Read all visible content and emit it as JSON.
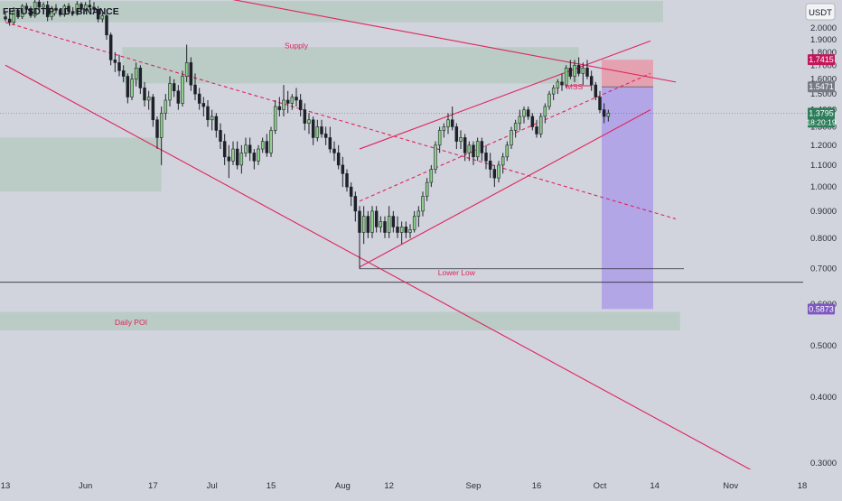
{
  "chart_data": {
    "type": "candlestick",
    "title": "FETUSDT.P, 1D, BINANCE",
    "currency": "USDT",
    "y_scale": "log",
    "ylim": [
      0.27,
      2.2
    ],
    "x_range": [
      "2024-05-13",
      "2024-11-18"
    ],
    "y_ticks": [
      "2.0000",
      "1.9000",
      "1.8000",
      "1.7000",
      "1.6000",
      "1.5000",
      "1.4000",
      "1.3000",
      "1.2000",
      "1.1000",
      "1.0000",
      "0.9000",
      "0.8000",
      "0.7000",
      "0.6000",
      "0.5000",
      "0.4000",
      "0.3000"
    ],
    "x_ticks": [
      {
        "label": "13",
        "date": "2024-05-13"
      },
      {
        "label": "Jun",
        "date": "2024-06-01"
      },
      {
        "label": "17",
        "date": "2024-06-17"
      },
      {
        "label": "Jul",
        "date": "2024-07-01"
      },
      {
        "label": "15",
        "date": "2024-07-15"
      },
      {
        "label": "Aug",
        "date": "2024-08-01"
      },
      {
        "label": "12",
        "date": "2024-08-12"
      },
      {
        "label": "Sep",
        "date": "2024-09-01"
      },
      {
        "label": "16",
        "date": "2024-09-16"
      },
      {
        "label": "Oct",
        "date": "2024-10-01"
      },
      {
        "label": "14",
        "date": "2024-10-14"
      },
      {
        "label": "Nov",
        "date": "2024-11-01"
      },
      {
        "label": "18",
        "date": "2024-11-18"
      }
    ],
    "price_markers": [
      {
        "label": "1.7415",
        "value": 1.7415,
        "color": "#c2185b"
      },
      {
        "label": "1.5471",
        "value": 1.5471,
        "color": "#787b86"
      },
      {
        "label": "1.3795",
        "value": 1.3795,
        "sublabel": "18:20:19",
        "color": "#2e7d5b"
      },
      {
        "label": "0.5873",
        "value": 0.5873,
        "color": "#7e57c2"
      }
    ],
    "zones": [
      {
        "label": "",
        "start": "2024-05-13",
        "end": "2024-10-16",
        "high": 2.25,
        "low": 2.05
      },
      {
        "label": "Supply",
        "start": "2024-06-11",
        "end": "2024-09-26",
        "high": 1.84,
        "low": 1.57
      },
      {
        "label": "",
        "start": "2024-05-13",
        "end": "2024-06-19",
        "high": 1.24,
        "low": 0.98
      },
      {
        "label": "Daily POI",
        "start": "2024-05-13",
        "end": "2024-10-20",
        "high": 0.58,
        "low": 0.535
      }
    ],
    "annotations": [
      {
        "label": "Lower Low",
        "date": "2024-08-28",
        "value": 0.68
      },
      {
        "label": "MSS",
        "date": "2024-09-25",
        "value": 1.53
      }
    ],
    "position": {
      "entry": 1.5471,
      "stop": 1.7415,
      "target": 0.5873,
      "start": "2024-10-01",
      "end": "2024-10-13"
    },
    "horizontal_lines": [
      0.7,
      0.66
    ],
    "trendlines": [
      {
        "style": "solid",
        "color": "#e0245e",
        "points": [
          [
            "2024-05-13",
            1.7
          ],
          [
            "2024-11-08",
            0.285
          ]
        ]
      },
      {
        "style": "solid",
        "color": "#e0245e",
        "points": [
          [
            "2024-06-25",
            2.35
          ],
          [
            "2024-10-19",
            1.58
          ]
        ]
      },
      {
        "style": "dashed",
        "color": "#e0245e",
        "points": [
          [
            "2024-05-13",
            2.05
          ],
          [
            "2024-10-19",
            0.87
          ]
        ]
      },
      {
        "style": "solid",
        "color": "#e0245e",
        "points": [
          [
            "2024-08-05",
            1.18
          ],
          [
            "2024-10-13",
            1.89
          ]
        ]
      },
      {
        "style": "dashed",
        "color": "#e0245e",
        "points": [
          [
            "2024-08-05",
            0.94
          ],
          [
            "2024-10-13",
            1.64
          ]
        ]
      },
      {
        "style": "solid",
        "color": "#e0245e",
        "points": [
          [
            "2024-08-05",
            0.705
          ],
          [
            "2024-10-13",
            1.4
          ]
        ]
      }
    ],
    "candles": [
      [
        "2024-05-13",
        2.1,
        2.15,
        2.06,
        2.08
      ],
      [
        "2024-05-14",
        2.08,
        2.12,
        2.02,
        2.05
      ],
      [
        "2024-05-15",
        2.05,
        2.19,
        2.03,
        2.16
      ],
      [
        "2024-05-16",
        2.16,
        2.18,
        2.08,
        2.1
      ],
      [
        "2024-05-17",
        2.1,
        2.22,
        2.08,
        2.2
      ],
      [
        "2024-05-18",
        2.2,
        2.23,
        2.14,
        2.17
      ],
      [
        "2024-05-19",
        2.17,
        2.2,
        2.09,
        2.11
      ],
      [
        "2024-05-20",
        2.11,
        2.26,
        2.09,
        2.24
      ],
      [
        "2024-05-21",
        2.24,
        2.28,
        2.16,
        2.19
      ],
      [
        "2024-05-22",
        2.19,
        2.24,
        2.15,
        2.21
      ],
      [
        "2024-05-23",
        2.21,
        2.25,
        2.06,
        2.1
      ],
      [
        "2024-05-24",
        2.1,
        2.2,
        2.07,
        2.18
      ],
      [
        "2024-05-25",
        2.18,
        2.22,
        2.13,
        2.16
      ],
      [
        "2024-05-26",
        2.16,
        2.18,
        2.1,
        2.12
      ],
      [
        "2024-05-27",
        2.12,
        2.22,
        2.1,
        2.2
      ],
      [
        "2024-05-28",
        2.2,
        2.23,
        2.12,
        2.15
      ],
      [
        "2024-05-29",
        2.15,
        2.19,
        2.11,
        2.13
      ],
      [
        "2024-05-30",
        2.13,
        2.25,
        2.11,
        2.22
      ],
      [
        "2024-05-31",
        2.22,
        2.24,
        2.15,
        2.17
      ],
      [
        "2024-06-01",
        2.17,
        2.24,
        2.15,
        2.21
      ],
      [
        "2024-06-02",
        2.21,
        2.26,
        2.16,
        2.19
      ],
      [
        "2024-06-03",
        2.19,
        2.24,
        2.14,
        2.17
      ],
      [
        "2024-06-04",
        2.17,
        2.2,
        2.05,
        2.08
      ],
      [
        "2024-06-05",
        2.08,
        2.14,
        2.05,
        2.11
      ],
      [
        "2024-06-06",
        2.11,
        2.13,
        1.9,
        1.94
      ],
      [
        "2024-06-07",
        1.94,
        1.96,
        1.7,
        1.74
      ],
      [
        "2024-06-08",
        1.74,
        1.8,
        1.65,
        1.72
      ],
      [
        "2024-06-09",
        1.72,
        1.78,
        1.62,
        1.66
      ],
      [
        "2024-06-10",
        1.66,
        1.7,
        1.58,
        1.62
      ],
      [
        "2024-06-11",
        1.62,
        1.64,
        1.44,
        1.48
      ],
      [
        "2024-06-12",
        1.48,
        1.64,
        1.46,
        1.6
      ],
      [
        "2024-06-13",
        1.6,
        1.72,
        1.55,
        1.68
      ],
      [
        "2024-06-14",
        1.68,
        1.7,
        1.5,
        1.54
      ],
      [
        "2024-06-15",
        1.54,
        1.58,
        1.42,
        1.46
      ],
      [
        "2024-06-16",
        1.46,
        1.52,
        1.4,
        1.48
      ],
      [
        "2024-06-17",
        1.48,
        1.5,
        1.3,
        1.34
      ],
      [
        "2024-06-18",
        1.34,
        1.36,
        1.18,
        1.24
      ],
      [
        "2024-06-19",
        1.24,
        1.42,
        1.1,
        1.38
      ],
      [
        "2024-06-20",
        1.38,
        1.5,
        1.34,
        1.46
      ],
      [
        "2024-06-21",
        1.46,
        1.62,
        1.42,
        1.57
      ],
      [
        "2024-06-22",
        1.57,
        1.6,
        1.48,
        1.52
      ],
      [
        "2024-06-23",
        1.52,
        1.56,
        1.4,
        1.44
      ],
      [
        "2024-06-24",
        1.44,
        1.66,
        1.42,
        1.62
      ],
      [
        "2024-06-25",
        1.62,
        1.86,
        1.58,
        1.72
      ],
      [
        "2024-06-26",
        1.72,
        1.76,
        1.52,
        1.56
      ],
      [
        "2024-06-27",
        1.56,
        1.64,
        1.46,
        1.5
      ],
      [
        "2024-06-28",
        1.5,
        1.54,
        1.4,
        1.44
      ],
      [
        "2024-06-29",
        1.44,
        1.48,
        1.36,
        1.42
      ],
      [
        "2024-06-30",
        1.42,
        1.46,
        1.3,
        1.34
      ],
      [
        "2024-07-01",
        1.34,
        1.4,
        1.28,
        1.36
      ],
      [
        "2024-07-02",
        1.36,
        1.38,
        1.24,
        1.28
      ],
      [
        "2024-07-03",
        1.28,
        1.32,
        1.18,
        1.22
      ],
      [
        "2024-07-04",
        1.22,
        1.26,
        1.1,
        1.14
      ],
      [
        "2024-07-05",
        1.14,
        1.2,
        1.04,
        1.12
      ],
      [
        "2024-07-06",
        1.12,
        1.22,
        1.1,
        1.18
      ],
      [
        "2024-07-07",
        1.18,
        1.22,
        1.08,
        1.1
      ],
      [
        "2024-07-08",
        1.1,
        1.2,
        1.06,
        1.16
      ],
      [
        "2024-07-09",
        1.16,
        1.24,
        1.14,
        1.2
      ],
      [
        "2024-07-10",
        1.2,
        1.24,
        1.12,
        1.16
      ],
      [
        "2024-07-11",
        1.16,
        1.18,
        1.08,
        1.12
      ],
      [
        "2024-07-12",
        1.12,
        1.2,
        1.1,
        1.18
      ],
      [
        "2024-07-13",
        1.18,
        1.24,
        1.16,
        1.22
      ],
      [
        "2024-07-14",
        1.22,
        1.26,
        1.14,
        1.16
      ],
      [
        "2024-07-15",
        1.16,
        1.3,
        1.14,
        1.28
      ],
      [
        "2024-07-16",
        1.28,
        1.46,
        1.26,
        1.42
      ],
      [
        "2024-07-17",
        1.42,
        1.48,
        1.36,
        1.4
      ],
      [
        "2024-07-18",
        1.4,
        1.56,
        1.36,
        1.46
      ],
      [
        "2024-07-19",
        1.46,
        1.52,
        1.38,
        1.44
      ],
      [
        "2024-07-20",
        1.44,
        1.5,
        1.4,
        1.48
      ],
      [
        "2024-07-21",
        1.48,
        1.54,
        1.42,
        1.46
      ],
      [
        "2024-07-22",
        1.46,
        1.5,
        1.36,
        1.4
      ],
      [
        "2024-07-23",
        1.4,
        1.44,
        1.28,
        1.32
      ],
      [
        "2024-07-24",
        1.32,
        1.38,
        1.26,
        1.34
      ],
      [
        "2024-07-25",
        1.34,
        1.36,
        1.2,
        1.24
      ],
      [
        "2024-07-26",
        1.24,
        1.34,
        1.22,
        1.3
      ],
      [
        "2024-07-27",
        1.3,
        1.34,
        1.24,
        1.26
      ],
      [
        "2024-07-28",
        1.26,
        1.3,
        1.2,
        1.24
      ],
      [
        "2024-07-29",
        1.24,
        1.3,
        1.16,
        1.18
      ],
      [
        "2024-07-30",
        1.18,
        1.22,
        1.12,
        1.16
      ],
      [
        "2024-07-31",
        1.16,
        1.2,
        1.08,
        1.1
      ],
      [
        "2024-08-01",
        1.1,
        1.14,
        1.0,
        1.06
      ],
      [
        "2024-08-02",
        1.06,
        1.08,
        0.98,
        1.0
      ],
      [
        "2024-08-03",
        1.0,
        1.02,
        0.92,
        0.96
      ],
      [
        "2024-08-04",
        0.96,
        0.98,
        0.86,
        0.9
      ],
      [
        "2024-08-05",
        0.9,
        0.92,
        0.7,
        0.82
      ],
      [
        "2024-08-06",
        0.82,
        0.92,
        0.78,
        0.88
      ],
      [
        "2024-08-07",
        0.88,
        0.9,
        0.8,
        0.82
      ],
      [
        "2024-08-08",
        0.82,
        0.92,
        0.8,
        0.9
      ],
      [
        "2024-08-09",
        0.9,
        0.92,
        0.82,
        0.84
      ],
      [
        "2024-08-10",
        0.84,
        0.88,
        0.82,
        0.86
      ],
      [
        "2024-08-11",
        0.86,
        0.88,
        0.8,
        0.82
      ],
      [
        "2024-08-12",
        0.82,
        0.92,
        0.8,
        0.88
      ],
      [
        "2024-08-13",
        0.88,
        0.9,
        0.82,
        0.84
      ],
      [
        "2024-08-14",
        0.84,
        0.88,
        0.8,
        0.82
      ],
      [
        "2024-08-15",
        0.82,
        0.86,
        0.78,
        0.84
      ],
      [
        "2024-08-16",
        0.84,
        0.86,
        0.8,
        0.82
      ],
      [
        "2024-08-17",
        0.82,
        0.85,
        0.8,
        0.83
      ],
      [
        "2024-08-18",
        0.83,
        0.9,
        0.82,
        0.88
      ],
      [
        "2024-08-19",
        0.88,
        0.92,
        0.84,
        0.9
      ],
      [
        "2024-08-20",
        0.9,
        0.98,
        0.88,
        0.96
      ],
      [
        "2024-08-21",
        0.96,
        1.04,
        0.94,
        1.02
      ],
      [
        "2024-08-22",
        1.02,
        1.1,
        1.0,
        1.08
      ],
      [
        "2024-08-23",
        1.08,
        1.22,
        1.06,
        1.2
      ],
      [
        "2024-08-24",
        1.2,
        1.3,
        1.16,
        1.28
      ],
      [
        "2024-08-25",
        1.28,
        1.32,
        1.24,
        1.3
      ],
      [
        "2024-08-26",
        1.3,
        1.38,
        1.26,
        1.34
      ],
      [
        "2024-08-27",
        1.34,
        1.42,
        1.28,
        1.3
      ],
      [
        "2024-08-28",
        1.3,
        1.32,
        1.18,
        1.22
      ],
      [
        "2024-08-29",
        1.22,
        1.28,
        1.18,
        1.24
      ],
      [
        "2024-08-30",
        1.24,
        1.26,
        1.12,
        1.16
      ],
      [
        "2024-08-31",
        1.16,
        1.22,
        1.12,
        1.2
      ],
      [
        "2024-09-01",
        1.2,
        1.22,
        1.1,
        1.14
      ],
      [
        "2024-09-02",
        1.14,
        1.24,
        1.12,
        1.22
      ],
      [
        "2024-09-03",
        1.22,
        1.24,
        1.12,
        1.16
      ],
      [
        "2024-09-04",
        1.16,
        1.2,
        1.08,
        1.12
      ],
      [
        "2024-09-05",
        1.12,
        1.16,
        1.04,
        1.08
      ],
      [
        "2024-09-06",
        1.08,
        1.1,
        1.0,
        1.04
      ],
      [
        "2024-09-07",
        1.04,
        1.12,
        1.02,
        1.1
      ],
      [
        "2024-09-08",
        1.1,
        1.16,
        1.06,
        1.14
      ],
      [
        "2024-09-09",
        1.14,
        1.22,
        1.12,
        1.2
      ],
      [
        "2024-09-10",
        1.2,
        1.3,
        1.18,
        1.28
      ],
      [
        "2024-09-11",
        1.28,
        1.34,
        1.24,
        1.32
      ],
      [
        "2024-09-12",
        1.32,
        1.4,
        1.28,
        1.36
      ],
      [
        "2024-09-13",
        1.36,
        1.42,
        1.32,
        1.4
      ],
      [
        "2024-09-14",
        1.4,
        1.42,
        1.34,
        1.36
      ],
      [
        "2024-09-15",
        1.36,
        1.38,
        1.28,
        1.3
      ],
      [
        "2024-09-16",
        1.3,
        1.34,
        1.24,
        1.26
      ],
      [
        "2024-09-17",
        1.26,
        1.38,
        1.24,
        1.36
      ],
      [
        "2024-09-18",
        1.36,
        1.44,
        1.32,
        1.42
      ],
      [
        "2024-09-19",
        1.42,
        1.52,
        1.4,
        1.5
      ],
      [
        "2024-09-20",
        1.5,
        1.56,
        1.46,
        1.54
      ],
      [
        "2024-09-21",
        1.54,
        1.6,
        1.5,
        1.58
      ],
      [
        "2024-09-22",
        1.58,
        1.64,
        1.52,
        1.56
      ],
      [
        "2024-09-23",
        1.56,
        1.7,
        1.54,
        1.68
      ],
      [
        "2024-09-24",
        1.68,
        1.74,
        1.6,
        1.62
      ],
      [
        "2024-09-25",
        1.62,
        1.74,
        1.58,
        1.7
      ],
      [
        "2024-09-26",
        1.7,
        1.76,
        1.62,
        1.64
      ],
      [
        "2024-09-27",
        1.64,
        1.72,
        1.56,
        1.68
      ],
      [
        "2024-09-28",
        1.68,
        1.74,
        1.6,
        1.62
      ],
      [
        "2024-09-29",
        1.62,
        1.66,
        1.52,
        1.56
      ],
      [
        "2024-09-30",
        1.56,
        1.58,
        1.46,
        1.48
      ],
      [
        "2024-10-01",
        1.48,
        1.52,
        1.38,
        1.4
      ],
      [
        "2024-10-02",
        1.4,
        1.44,
        1.32,
        1.36
      ],
      [
        "2024-10-03",
        1.36,
        1.4,
        1.33,
        1.38
      ]
    ]
  }
}
